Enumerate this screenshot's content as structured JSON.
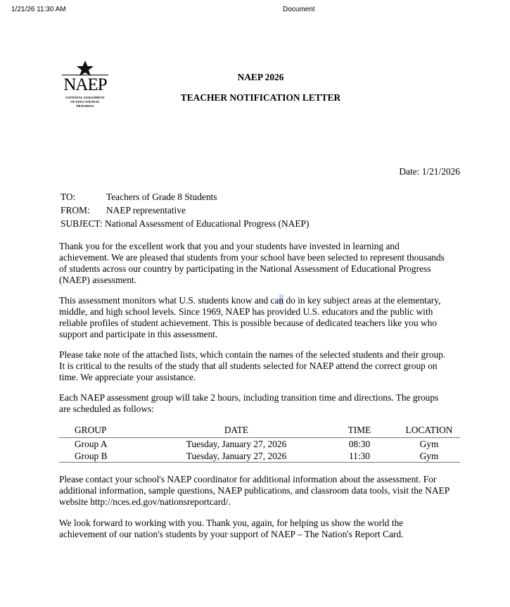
{
  "print_header": {
    "datetime": "1/21/26 11:30 AM",
    "doc_title": "Document"
  },
  "logo": {
    "text": "NAEP",
    "subtitle": [
      "NATIONAL ASSESSMENT",
      "OF EDUCATIONAL",
      "PROGRESS"
    ]
  },
  "title": "NAEP 2026",
  "subtitle": "TEACHER NOTIFICATION LETTER",
  "date": "Date: 1/21/2026",
  "memo": [
    {
      "label": "TO:",
      "value": "Teachers of Grade 8 Students"
    },
    {
      "label": "FROM:",
      "value": "NAEP representative"
    },
    {
      "label": "SUBJECT:",
      "value": "National Assessment of Educational Progress (NAEP)"
    }
  ],
  "paragraphs": [
    [
      "Thank you for the excellent work that you and your students have invested in learning and",
      "achievement. We are pleased that students from your school have been selected to represent thousands",
      "of students across our country by participating in the National Assessment of Educational Progress",
      "(NAEP) assessment."
    ],
    [
      "This assessment monitors what U.S. students know and can do in key subject areas at the elementary,",
      "middle, and high school levels. Since 1969, NAEP has provided U.S. educators and the public with",
      "reliable profiles of student achievement. This is possible because of dedicated teachers like you who",
      "support and participate in this assessment."
    ],
    [
      "Please take note of the attached lists, which contain the names of the selected students and their group.",
      "It is critical to the results of the study that all students selected for NAEP attend the correct group on",
      "time. We appreciate your assistance."
    ],
    [
      "Each NAEP assessment group will take 2 hours, including transition time and directions. The groups",
      "are scheduled as follows:"
    ]
  ],
  "schedule": {
    "headers": [
      "GROUP",
      "DATE",
      "TIME",
      "LOCATION"
    ],
    "rows": [
      [
        "Group A",
        "Tuesday, January 27, 2026",
        "08:30",
        "Gym"
      ],
      [
        "Group B",
        "Tuesday, January 27, 2026",
        "11:30",
        "Gym"
      ]
    ]
  },
  "closing": [
    [
      "Please contact your school's NAEP coordinator for additional information about the assessment. For",
      "additional information, sample questions, NAEP publications, and classroom data tools, visit the NAEP",
      "website http://nces.ed.gov/nationsreportcard/."
    ],
    [
      "We look forward to working with you. Thank you, again, for helping us show the world the",
      "achievement of our nation's students by your support of NAEP – The Nation's Report Card."
    ]
  ]
}
